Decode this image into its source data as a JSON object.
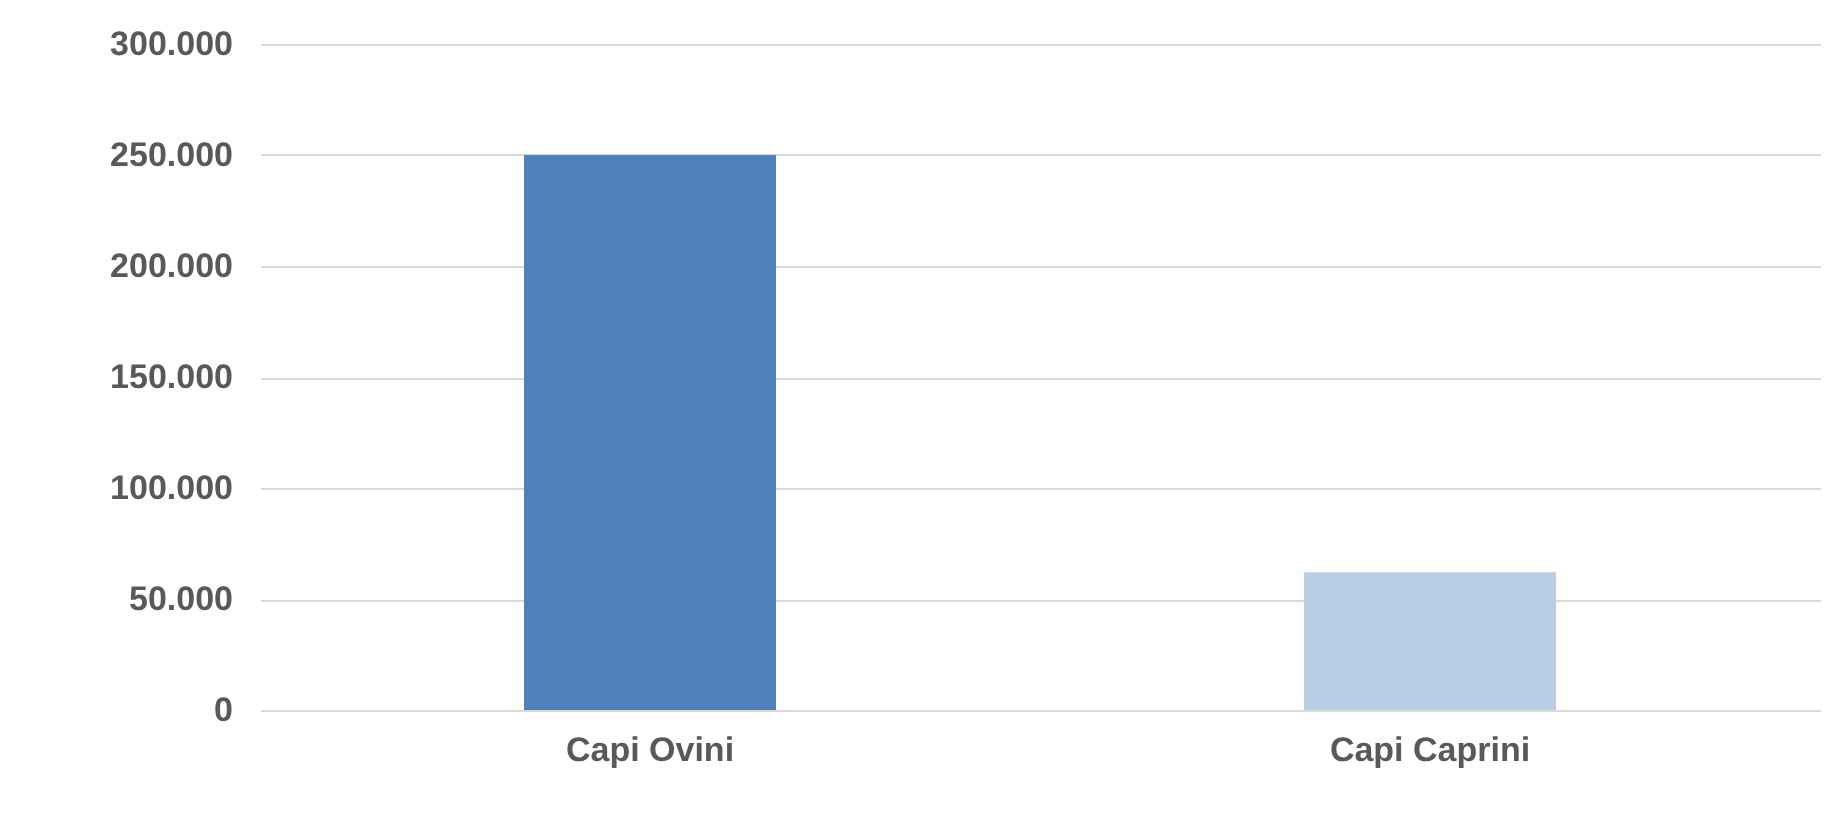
{
  "chart_data": {
    "type": "bar",
    "categories": [
      "Capi Ovini",
      "Capi Caprini"
    ],
    "values": [
      250000,
      62000
    ],
    "colors": [
      "#4f81bd",
      "#b9cde5"
    ],
    "ylim": [
      0,
      300000
    ],
    "yticks": [
      {
        "value": 0,
        "label": "0"
      },
      {
        "value": 50000,
        "label": "50.000"
      },
      {
        "value": 100000,
        "label": "100.000"
      },
      {
        "value": 150000,
        "label": "150.000"
      },
      {
        "value": 200000,
        "label": "200.000"
      },
      {
        "value": 250000,
        "label": "250.000"
      },
      {
        "value": 300000,
        "label": "300.000"
      }
    ],
    "grid": "y"
  }
}
